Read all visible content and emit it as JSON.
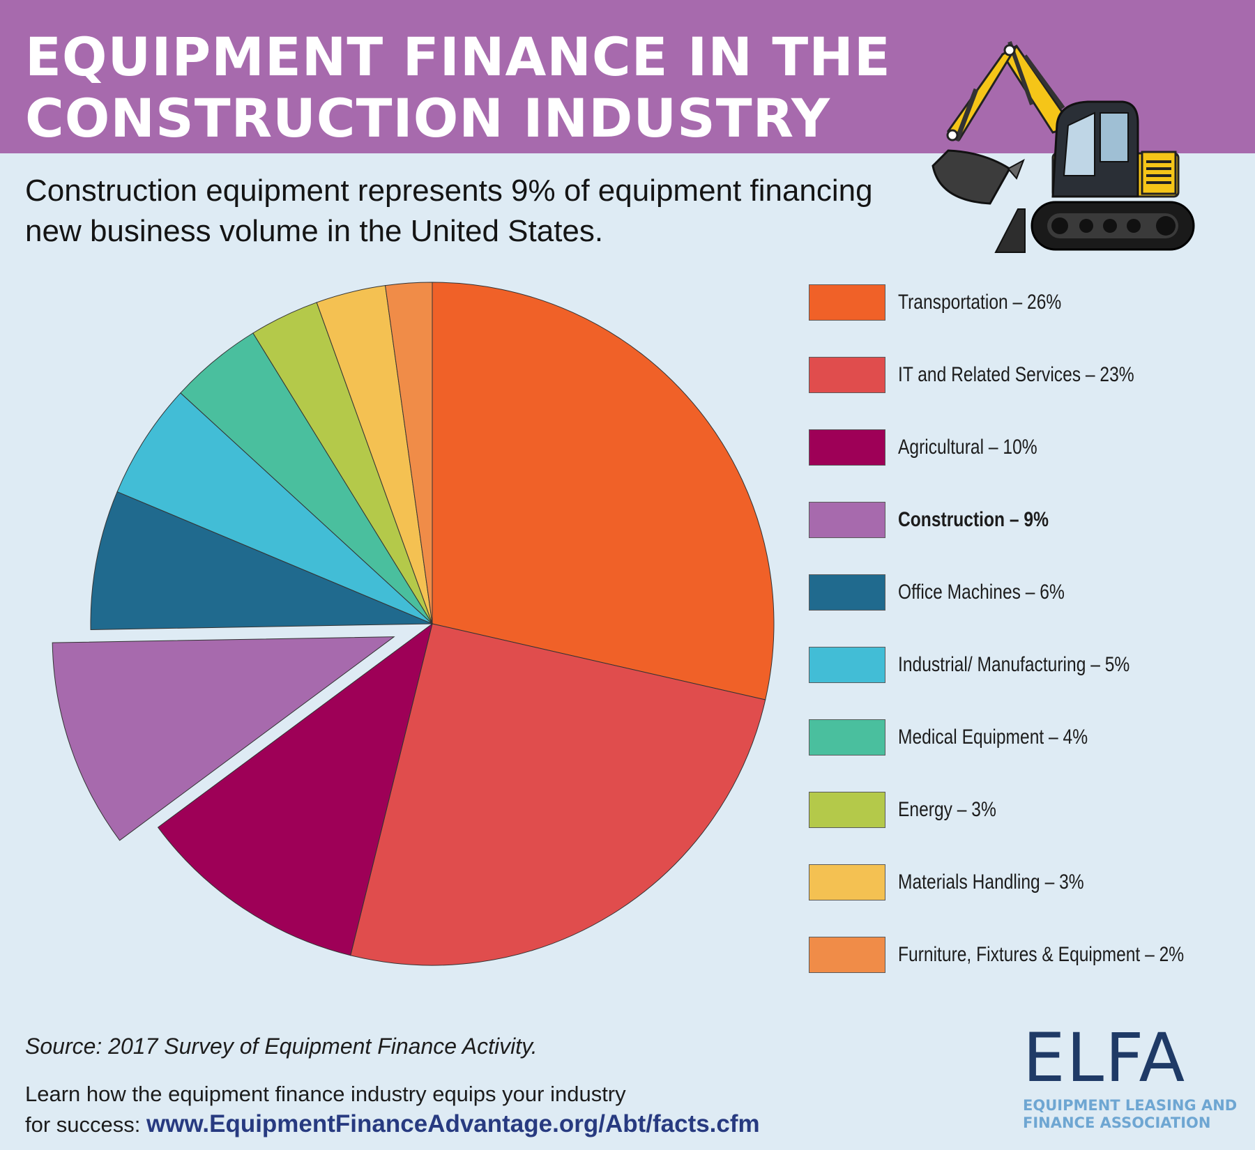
{
  "header": {
    "title": "Equipment Finance in the Construction Industry",
    "subtitle": "Construction equipment represents 9% of equipment financing new business volume in the United States."
  },
  "chart_data": {
    "type": "pie",
    "categories": [
      "Transportation",
      "IT and Related Services",
      "Agricultural",
      "Construction",
      "Office Machines",
      "Industrial/ Manufacturing",
      "Medical Equipment",
      "Energy",
      "Materials Handling",
      "Furniture, Fixtures & Equipment"
    ],
    "values": [
      26,
      23,
      10,
      9,
      6,
      5,
      4,
      3,
      3,
      2
    ],
    "colors": [
      "#f06128",
      "#e04d4d",
      "#9e0057",
      "#a76aad",
      "#206a8e",
      "#42bdd6",
      "#4abf9e",
      "#b4c94a",
      "#f4c152",
      "#f08c48"
    ],
    "exploded": "Construction",
    "legend_position": "right",
    "legend": [
      {
        "label": "Transportation – 26%",
        "bold": false
      },
      {
        "label": "IT and Related Services – 23%",
        "bold": false
      },
      {
        "label": "Agricultural – 10%",
        "bold": false
      },
      {
        "label": "Construction – 9%",
        "bold": true
      },
      {
        "label": "Office Machines – 6%",
        "bold": false
      },
      {
        "label": "Industrial/ Manufacturing – 5%",
        "bold": false
      },
      {
        "label": "Medical Equipment – 4%",
        "bold": false
      },
      {
        "label": "Energy – 3%",
        "bold": false
      },
      {
        "label": "Materials Handling – 3%",
        "bold": false
      },
      {
        "label": "Furniture, Fixtures & Equipment – 2%",
        "bold": false
      }
    ]
  },
  "footer": {
    "source": "Source: 2017 Survey of Equipment Finance Activity.",
    "learn_line1": "Learn how the equipment finance industry equips your industry",
    "learn_line2_prefix": "for success: ",
    "learn_url": "www.EquipmentFinanceAdvantage.org/Abt/facts.cfm"
  },
  "logo": {
    "mark": "ELFA",
    "name_line1": "EQUIPMENT LEASING AND",
    "name_line2": "FINANCE ASSOCIATION"
  },
  "illustration": {
    "icon": "excavator-icon"
  }
}
